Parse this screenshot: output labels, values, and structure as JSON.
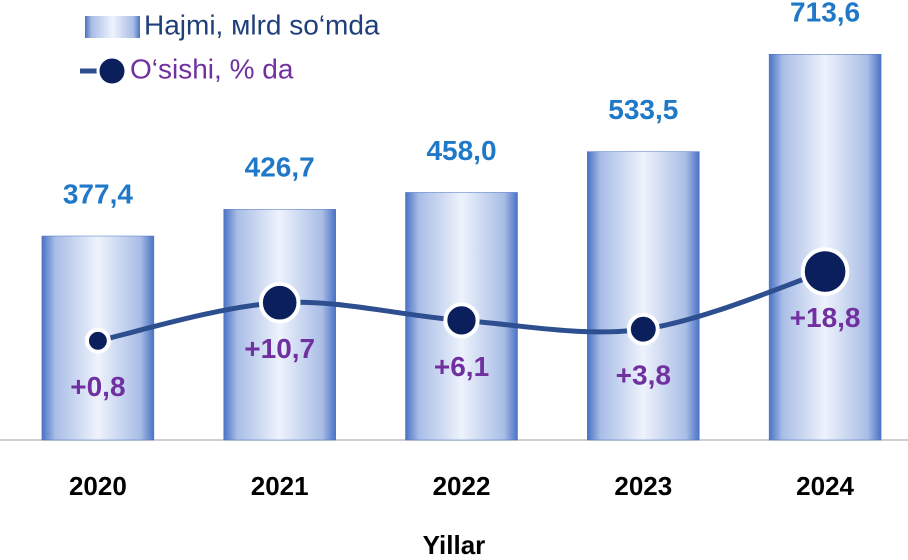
{
  "chart_data": {
    "type": "bar_line",
    "categories": [
      "2020",
      "2021",
      "2022",
      "2023",
      "2024"
    ],
    "x_label": "Yillar",
    "series": [
      {
        "name": "Hajmi, мlrd so‘mda",
        "type": "bar",
        "color": "#4a72c4",
        "values": [
          377.4,
          426.7,
          458.0,
          533.5,
          713.6
        ],
        "value_labels": [
          "377,4",
          "426,7",
          "458,0",
          "533,5",
          "713,6"
        ],
        "label_color": "#1f78c8"
      },
      {
        "name": "O‘sishi, % da",
        "type": "line",
        "axis": "y2",
        "color": "#2e4f8f",
        "marker_color": "#0a1f5c",
        "values": [
          0.8,
          10.7,
          6.1,
          3.8,
          18.8
        ],
        "value_labels": [
          "+0,8",
          "+10,7",
          "+6,1",
          "+3,8",
          "+18,8"
        ],
        "label_color": "#7030a0"
      }
    ],
    "ylim": [
      0,
      740
    ],
    "y2lim": [
      -25,
      79
    ]
  }
}
